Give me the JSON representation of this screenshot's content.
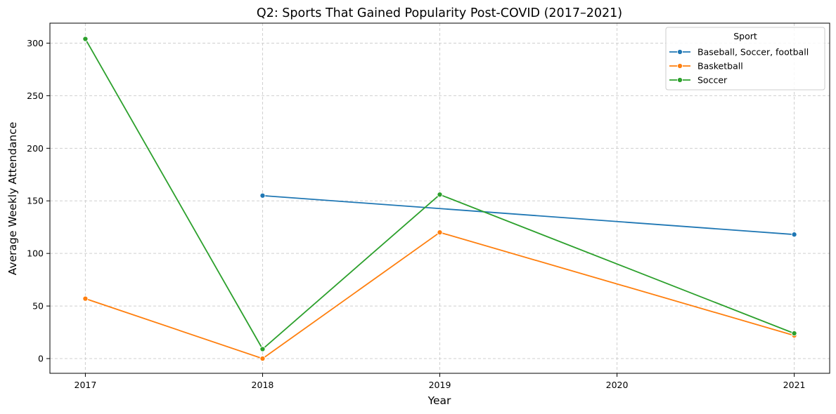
{
  "chart_data": {
    "type": "line",
    "title": "Q2: Sports That Gained Popularity Post-COVID (2017–2021)",
    "xlabel": "Year",
    "ylabel": "Average Weekly Attendance",
    "x_ticks": [
      "2017",
      "2018",
      "2019",
      "2020",
      "2021"
    ],
    "y_ticks": [
      0,
      50,
      100,
      150,
      200,
      250,
      300
    ],
    "y_tick_labels": [
      "0",
      "50",
      "100",
      "150",
      "200",
      "250",
      "300"
    ],
    "xlim": [
      2016.8,
      2021.2
    ],
    "ylim": [
      -14,
      319
    ],
    "grid": true,
    "legend": {
      "title": "Sport",
      "placement": "top-right"
    },
    "series": [
      {
        "name": "Baseball, Soccer, football",
        "color": "#1f77b4",
        "points": [
          {
            "x": 2018,
            "y": 155
          },
          {
            "x": 2021,
            "y": 118
          }
        ]
      },
      {
        "name": "Basketball",
        "color": "#ff7f0e",
        "points": [
          {
            "x": 2017,
            "y": 57
          },
          {
            "x": 2018,
            "y": 0
          },
          {
            "x": 2019,
            "y": 120
          },
          {
            "x": 2021,
            "y": 22
          }
        ]
      },
      {
        "name": "Soccer",
        "color": "#2ca02c",
        "points": [
          {
            "x": 2017,
            "y": 304
          },
          {
            "x": 2018,
            "y": 9
          },
          {
            "x": 2019,
            "y": 156
          },
          {
            "x": 2021,
            "y": 24
          }
        ]
      }
    ]
  }
}
